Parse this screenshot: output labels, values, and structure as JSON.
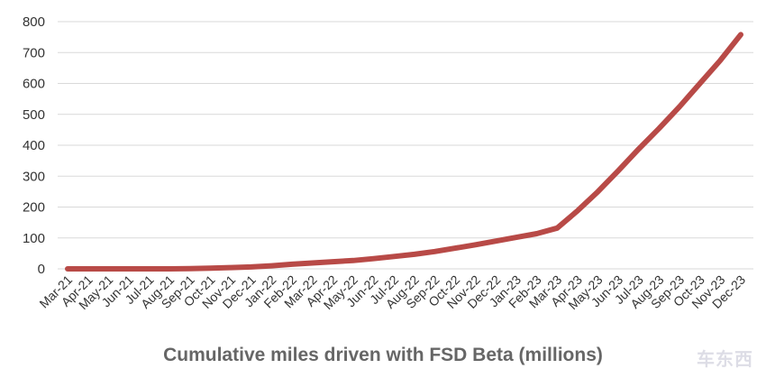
{
  "chart_data": {
    "type": "line",
    "title": "Cumulative miles driven with FSD Beta (millions)",
    "xlabel": "",
    "ylabel": "",
    "ylim": [
      0,
      800
    ],
    "yticks": [
      0,
      100,
      200,
      300,
      400,
      500,
      600,
      700,
      800
    ],
    "grid": true,
    "legend": "none",
    "categories": [
      "Mar-21",
      "Apr-21",
      "May-21",
      "Jun-21",
      "Jul-21",
      "Aug-21",
      "Sep-21",
      "Oct-21",
      "Nov-21",
      "Dec-21",
      "Jan-22",
      "Feb-22",
      "Mar-22",
      "Apr-22",
      "May-22",
      "Jun-22",
      "Jul-22",
      "Aug-22",
      "Sep-22",
      "Oct-22",
      "Nov-22",
      "Dec-22",
      "Jan-23",
      "Feb-23",
      "Mar-23",
      "Apr-23",
      "May-23",
      "Jun-23",
      "Jul-23",
      "Aug-23",
      "Sep-23",
      "Oct-23",
      "Nov-23",
      "Dec-23"
    ],
    "series": [
      {
        "values": [
          0,
          0,
          0,
          0,
          0,
          0,
          1,
          2,
          4,
          6,
          10,
          15,
          19,
          23,
          27,
          33,
          40,
          47,
          56,
          67,
          78,
          90,
          102,
          114,
          132,
          188,
          250,
          318,
          388,
          455,
          525,
          600,
          675,
          758
        ],
        "color": "#b84a47"
      }
    ]
  },
  "watermark": "车东西"
}
